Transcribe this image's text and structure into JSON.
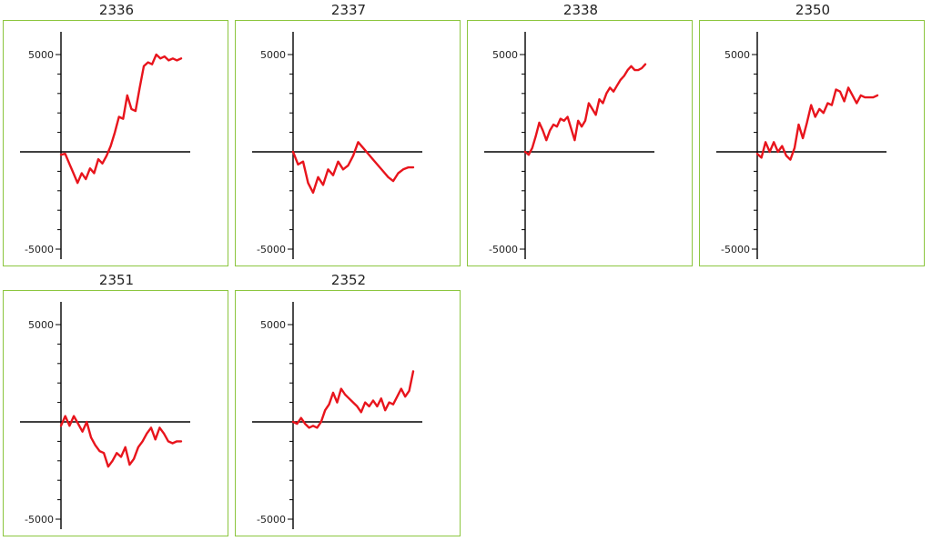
{
  "colors": {
    "frame": "#8cc63f",
    "line": "#e8141c",
    "axis": "#000000"
  },
  "chart_data": [
    {
      "type": "line",
      "title": "2336",
      "ylim": [
        -5000,
        5000
      ],
      "ytick_labels": [
        "5000",
        "-5000"
      ],
      "grid": false,
      "series": [
        {
          "x": [
            0,
            1,
            2,
            3,
            4,
            5,
            6,
            7,
            8,
            9,
            10,
            11,
            12,
            13,
            14,
            15,
            16,
            17,
            18,
            19,
            20,
            21,
            22,
            23,
            24,
            25,
            26,
            27,
            28,
            29
          ],
          "y": [
            -150,
            -100,
            -600,
            -1100,
            -1600,
            -1100,
            -1400,
            -850,
            -1100,
            -380,
            -600,
            -200,
            300,
            1000,
            1800,
            1700,
            2900,
            2200,
            2100,
            3300,
            4400,
            4600,
            4500,
            5000,
            4800,
            4900,
            4700,
            4800,
            4700,
            4800
          ]
        }
      ]
    },
    {
      "type": "line",
      "title": "2337",
      "ylim": [
        -5000,
        5000
      ],
      "ytick_labels": [
        "5000",
        "-5000"
      ],
      "grid": false,
      "series": [
        {
          "x": [
            0,
            1,
            2,
            3,
            4,
            5,
            6,
            7,
            8,
            9,
            10,
            11,
            12,
            13,
            14,
            15,
            16,
            17,
            18,
            19,
            20,
            21,
            22,
            23,
            24
          ],
          "y": [
            0,
            -650,
            -500,
            -1600,
            -2100,
            -1300,
            -1700,
            -900,
            -1200,
            -500,
            -900,
            -700,
            -200,
            500,
            200,
            -100,
            -400,
            -700,
            -1000,
            -1300,
            -1500,
            -1100,
            -900,
            -800,
            -800
          ]
        }
      ]
    },
    {
      "type": "line",
      "title": "2338",
      "ylim": [
        -5000,
        5000
      ],
      "ytick_labels": [
        "5000",
        "-5000"
      ],
      "grid": false,
      "series": [
        {
          "x": [
            0,
            1,
            2,
            3,
            4,
            5,
            6,
            7,
            8,
            9,
            10,
            11,
            12,
            13,
            14,
            15,
            16,
            17,
            18,
            19,
            20,
            21,
            22,
            23,
            24,
            25,
            26,
            27,
            28,
            29,
            30,
            31,
            32,
            33,
            34
          ],
          "y": [
            0,
            -150,
            200,
            800,
            1500,
            1100,
            600,
            1100,
            1400,
            1300,
            1700,
            1600,
            1800,
            1200,
            600,
            1600,
            1300,
            1600,
            2500,
            2200,
            1900,
            2700,
            2500,
            3000,
            3300,
            3100,
            3400,
            3700,
            3900,
            4200,
            4400,
            4200,
            4200,
            4300,
            4500
          ]
        }
      ]
    },
    {
      "type": "line",
      "title": "2350",
      "ylim": [
        -5000,
        5000
      ],
      "ytick_labels": [
        "5000",
        "-5000"
      ],
      "grid": false,
      "series": [
        {
          "x": [
            0,
            1,
            2,
            3,
            4,
            5,
            6,
            7,
            8,
            9,
            10,
            11,
            12,
            13,
            14,
            15,
            16,
            17,
            18,
            19,
            20,
            21,
            22,
            23,
            24,
            25,
            26,
            27,
            28,
            29
          ],
          "y": [
            -100,
            -300,
            500,
            0,
            500,
            0,
            300,
            -200,
            -400,
            200,
            1400,
            700,
            1500,
            2400,
            1800,
            2200,
            2000,
            2500,
            2400,
            3200,
            3100,
            2600,
            3300,
            2900,
            2500,
            2900,
            2800,
            2800,
            2800,
            2900
          ]
        }
      ]
    },
    {
      "type": "line",
      "title": "2351",
      "ylim": [
        -5000,
        5000
      ],
      "ytick_labels": [
        "5000",
        "-5000"
      ],
      "grid": false,
      "series": [
        {
          "x": [
            0,
            1,
            2,
            3,
            4,
            5,
            6,
            7,
            8,
            9,
            10,
            11,
            12,
            13,
            14,
            15,
            16,
            17,
            18,
            19,
            20,
            21,
            22,
            23,
            24,
            25,
            26,
            27,
            28
          ],
          "y": [
            -200,
            300,
            -200,
            300,
            -100,
            -500,
            0,
            -800,
            -1200,
            -1500,
            -1600,
            -2300,
            -2000,
            -1600,
            -1800,
            -1300,
            -2200,
            -1900,
            -1300,
            -1000,
            -600,
            -300,
            -900,
            -300,
            -600,
            -1000,
            -1100,
            -1000,
            -1000
          ]
        }
      ]
    },
    {
      "type": "line",
      "title": "2352",
      "ylim": [
        -5000,
        5000
      ],
      "ytick_labels": [
        "5000",
        "-5000"
      ],
      "grid": false,
      "series": [
        {
          "x": [
            0,
            1,
            2,
            3,
            4,
            5,
            6,
            7,
            8,
            9,
            10,
            11,
            12,
            13,
            14,
            15,
            16,
            17,
            18,
            19,
            20,
            21,
            22,
            23,
            24,
            25,
            26,
            27,
            28,
            29,
            30
          ],
          "y": [
            0,
            -100,
            200,
            -100,
            -300,
            -200,
            -300,
            0,
            600,
            900,
            1500,
            1000,
            1700,
            1400,
            1200,
            1000,
            800,
            500,
            1000,
            800,
            1100,
            800,
            1200,
            600,
            1000,
            900,
            1300,
            1700,
            1300,
            1600,
            2600
          ]
        }
      ]
    }
  ]
}
